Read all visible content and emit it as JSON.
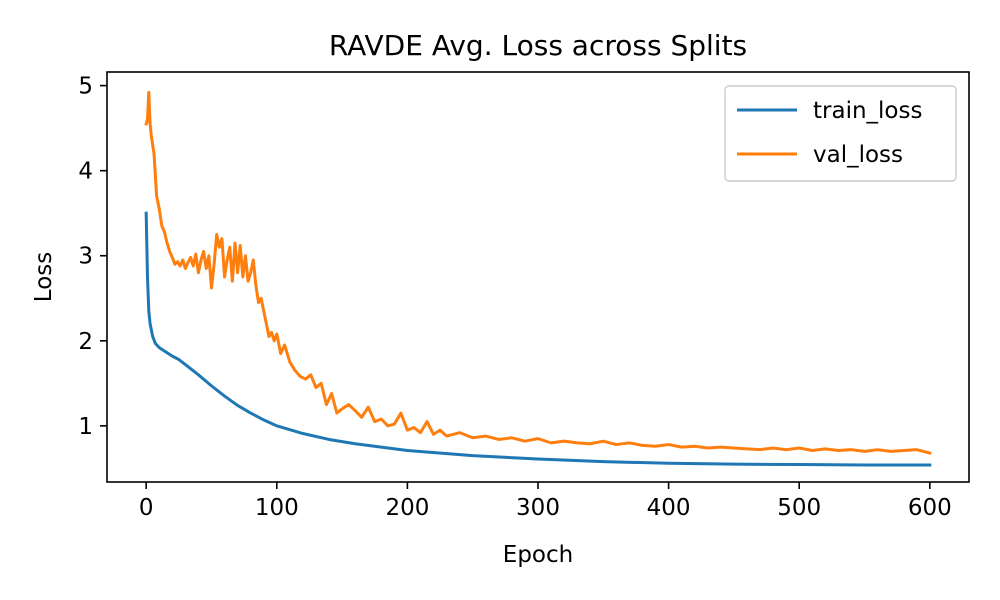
{
  "chart_data": {
    "type": "line",
    "title": "RAVDE Avg. Loss across Splits",
    "xlabel": "Epoch",
    "ylabel": "Loss",
    "xlim": [
      -30,
      630
    ],
    "ylim": [
      0.34,
      5.16
    ],
    "xticks": [
      0,
      100,
      200,
      300,
      400,
      500,
      600
    ],
    "yticks": [
      1,
      2,
      3,
      4,
      5
    ],
    "grid": false,
    "legend_position": "top-right",
    "colors": {
      "train_loss": "#1f77b4",
      "val_loss": "#ff7f0e"
    },
    "series": [
      {
        "name": "train_loss",
        "x": [
          0,
          1,
          2,
          3,
          5,
          7,
          10,
          15,
          20,
          25,
          30,
          40,
          50,
          60,
          70,
          80,
          90,
          100,
          120,
          140,
          160,
          180,
          200,
          250,
          300,
          350,
          400,
          450,
          500,
          550,
          600
        ],
        "y": [
          3.5,
          2.75,
          2.35,
          2.2,
          2.05,
          1.97,
          1.92,
          1.87,
          1.82,
          1.78,
          1.72,
          1.6,
          1.47,
          1.35,
          1.24,
          1.15,
          1.07,
          1.0,
          0.91,
          0.84,
          0.79,
          0.75,
          0.71,
          0.65,
          0.61,
          0.58,
          0.56,
          0.55,
          0.545,
          0.54,
          0.54
        ]
      },
      {
        "name": "val_loss",
        "x": [
          0,
          1,
          2,
          3,
          4,
          5,
          6,
          8,
          10,
          12,
          14,
          16,
          18,
          20,
          22,
          24,
          26,
          28,
          30,
          32,
          34,
          36,
          38,
          40,
          42,
          44,
          46,
          48,
          50,
          52,
          54,
          56,
          58,
          60,
          62,
          64,
          66,
          68,
          70,
          72,
          74,
          76,
          78,
          80,
          82,
          84,
          86,
          88,
          90,
          92,
          94,
          96,
          98,
          100,
          103,
          106,
          110,
          114,
          118,
          122,
          126,
          130,
          134,
          138,
          142,
          146,
          150,
          155,
          160,
          165,
          170,
          175,
          180,
          185,
          190,
          195,
          200,
          205,
          210,
          215,
          220,
          225,
          230,
          240,
          250,
          260,
          270,
          280,
          290,
          300,
          310,
          320,
          330,
          340,
          350,
          360,
          370,
          380,
          390,
          400,
          410,
          420,
          430,
          440,
          450,
          460,
          470,
          480,
          490,
          500,
          510,
          520,
          530,
          540,
          550,
          560,
          570,
          580,
          590,
          600
        ],
        "y": [
          4.55,
          4.6,
          4.92,
          4.55,
          4.4,
          4.3,
          4.2,
          3.7,
          3.55,
          3.35,
          3.28,
          3.15,
          3.05,
          2.98,
          2.9,
          2.93,
          2.88,
          2.95,
          2.85,
          2.92,
          2.98,
          2.88,
          3.02,
          2.8,
          2.95,
          3.05,
          2.85,
          3.0,
          2.62,
          2.9,
          3.25,
          3.1,
          3.2,
          2.75,
          2.95,
          3.1,
          2.7,
          3.15,
          2.8,
          3.12,
          2.75,
          3.0,
          2.7,
          2.8,
          2.95,
          2.65,
          2.45,
          2.5,
          2.35,
          2.2,
          2.05,
          2.1,
          2.0,
          2.08,
          1.85,
          1.95,
          1.75,
          1.65,
          1.58,
          1.55,
          1.6,
          1.45,
          1.5,
          1.25,
          1.38,
          1.15,
          1.2,
          1.25,
          1.18,
          1.1,
          1.22,
          1.05,
          1.08,
          1.0,
          1.02,
          1.15,
          0.95,
          0.98,
          0.92,
          1.05,
          0.9,
          0.95,
          0.88,
          0.92,
          0.86,
          0.88,
          0.84,
          0.86,
          0.82,
          0.85,
          0.8,
          0.82,
          0.8,
          0.79,
          0.82,
          0.78,
          0.8,
          0.77,
          0.76,
          0.78,
          0.75,
          0.76,
          0.74,
          0.75,
          0.74,
          0.73,
          0.72,
          0.74,
          0.72,
          0.74,
          0.71,
          0.73,
          0.71,
          0.72,
          0.7,
          0.72,
          0.7,
          0.71,
          0.72,
          0.68
        ]
      }
    ]
  }
}
